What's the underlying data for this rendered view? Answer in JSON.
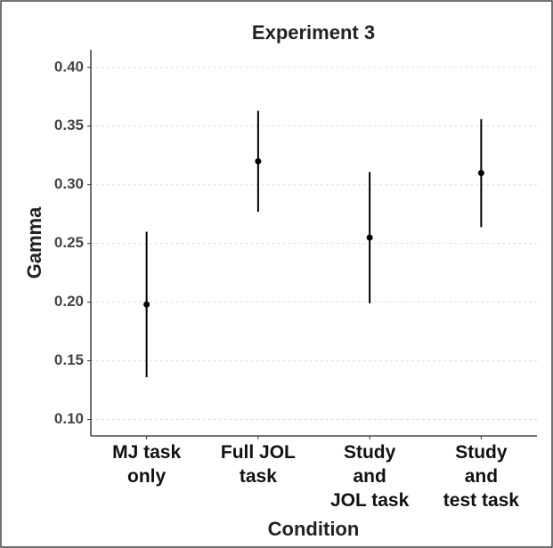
{
  "chart_data": {
    "type": "errorbar",
    "title": "Experiment 3",
    "x_label": "Condition",
    "y_label": "Gamma",
    "categories": [
      [
        "MJ task",
        "only"
      ],
      [
        "Full JOL",
        "task"
      ],
      [
        "Study",
        "and",
        "JOL task"
      ],
      [
        "Study",
        "and",
        "test task"
      ]
    ],
    "values": [
      0.198,
      0.32,
      0.255,
      0.31
    ],
    "errors": [
      0.062,
      0.043,
      0.056,
      0.046
    ],
    "color": "#000000",
    "ylim": [
      0.086,
      0.415
    ],
    "yticks": [
      {
        "value": 0.1,
        "label": "0.10"
      },
      {
        "value": 0.15,
        "label": "0.15"
      },
      {
        "value": 0.2,
        "label": "0.20"
      },
      {
        "value": 0.25,
        "label": "0.25"
      },
      {
        "value": 0.3,
        "label": "0.30"
      },
      {
        "value": 0.35,
        "label": "0.35"
      },
      {
        "value": 0.4,
        "label": "0.40"
      }
    ],
    "grid": true
  }
}
